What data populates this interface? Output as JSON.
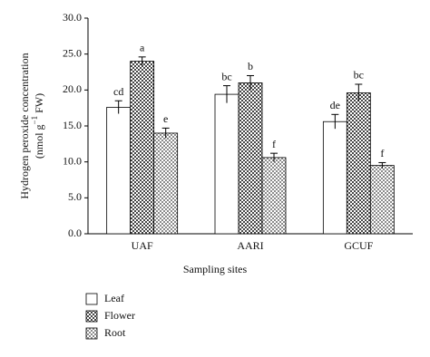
{
  "chart_data": {
    "type": "bar",
    "x_label": "Sampling sites",
    "y_label": {
      "line1": "Hydrogen peroxide concentration",
      "line2_start": "(nmol g",
      "line2_sup": "−1",
      "line2_end": "FW)"
    },
    "categories": [
      "UAF",
      "AARI",
      "GCUF"
    ],
    "series": [
      {
        "name": "Leaf",
        "color": "#ffffff",
        "pattern": "none",
        "values": [
          17.6,
          19.4,
          15.6
        ],
        "errors": [
          0.9,
          1.2,
          1.0
        ],
        "letters": [
          "cd",
          "bc",
          "de"
        ]
      },
      {
        "name": "Flower",
        "color": "#444444",
        "pattern": "checker",
        "values": [
          24.0,
          21.0,
          19.6
        ],
        "errors": [
          0.6,
          1.0,
          1.2
        ],
        "letters": [
          "a",
          "b",
          "bc"
        ]
      },
      {
        "name": "Root",
        "color": "#8a8a8a",
        "pattern": "checker",
        "values": [
          14.0,
          10.6,
          9.5
        ],
        "errors": [
          0.7,
          0.6,
          0.4
        ],
        "letters": [
          "e",
          "f",
          "f"
        ]
      }
    ],
    "ylim": [
      0,
      30
    ],
    "yticks": [
      {
        "value": 0,
        "label": "0.0"
      },
      {
        "value": 5,
        "label": "5.0"
      },
      {
        "value": 10,
        "label": "10.0"
      },
      {
        "value": 15,
        "label": "15.0"
      },
      {
        "value": 20,
        "label": "20.0"
      },
      {
        "value": 25,
        "label": "25.0"
      },
      {
        "value": 30,
        "label": "30.0"
      }
    ],
    "legend": "bottom-left"
  }
}
